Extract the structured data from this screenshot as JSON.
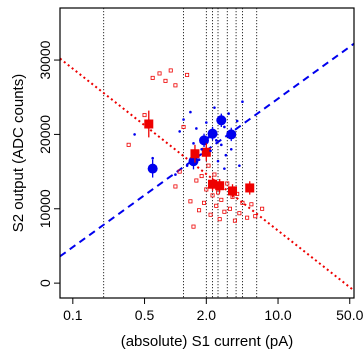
{
  "chart_data": {
    "type": "scatter",
    "xlabel": "(absolute) S1 current (pA)",
    "ylabel": "S2 output (ADC counts)",
    "x_scale": "log",
    "xlim": [
      0.075,
      55
    ],
    "ylim": [
      -2000,
      37000
    ],
    "x_tick_labels": [
      "0.1",
      "0.5",
      "2.0",
      "10.0",
      "50.0"
    ],
    "x_ticks": [
      0.1,
      0.5,
      2.0,
      10.0,
      50.0
    ],
    "y_tick_labels": [
      "0",
      "10000",
      "20000",
      "30000"
    ],
    "y_ticks": [
      0,
      10000,
      20000,
      30000
    ],
    "vertical_lines": [
      0.2,
      1.2,
      2.0,
      2.3,
      2.6,
      3.2,
      3.9,
      4.5,
      6.2
    ],
    "colors": {
      "blue": "#0000ee",
      "red": "#ee0000"
    },
    "series": [
      {
        "marker": "large circle",
        "color": "blue",
        "points": [
          {
            "x": 0.6,
            "y": 15400,
            "yerr": 1200
          },
          {
            "x": 1.5,
            "y": 16400,
            "yerr": 1100
          },
          {
            "x": 1.9,
            "y": 19200,
            "yerr": 900
          },
          {
            "x": 2.3,
            "y": 20100,
            "yerr": 900
          },
          {
            "x": 2.8,
            "y": 21900,
            "yerr": 900
          },
          {
            "x": 3.5,
            "y": 20000,
            "yerr": 900
          }
        ]
      },
      {
        "marker": "large square",
        "color": "red",
        "points": [
          {
            "x": 0.55,
            "y": 21400,
            "yerr": 1800
          },
          {
            "x": 1.55,
            "y": 17400,
            "yerr": 1200
          },
          {
            "x": 2.0,
            "y": 17600,
            "yerr": 1200
          },
          {
            "x": 2.3,
            "y": 13300,
            "yerr": 900
          },
          {
            "x": 2.7,
            "y": 13100,
            "yerr": 900
          },
          {
            "x": 3.6,
            "y": 12400,
            "yerr": 900
          },
          {
            "x": 5.3,
            "y": 12800,
            "yerr": 900
          }
        ]
      },
      {
        "marker": "small dot",
        "color": "blue",
        "points": [
          {
            "x": 0.4,
            "y": 20000
          },
          {
            "x": 0.6,
            "y": 16800
          },
          {
            "x": 1.0,
            "y": 14600
          },
          {
            "x": 1.1,
            "y": 20400
          },
          {
            "x": 1.2,
            "y": 22000
          },
          {
            "x": 1.3,
            "y": 15800
          },
          {
            "x": 1.5,
            "y": 18800
          },
          {
            "x": 1.6,
            "y": 20800
          },
          {
            "x": 1.7,
            "y": 16600
          },
          {
            "x": 1.8,
            "y": 18000
          },
          {
            "x": 2.0,
            "y": 21600
          },
          {
            "x": 2.1,
            "y": 19600
          },
          {
            "x": 2.2,
            "y": 17800
          },
          {
            "x": 2.4,
            "y": 23600
          },
          {
            "x": 2.5,
            "y": 19200
          },
          {
            "x": 2.6,
            "y": 16400
          },
          {
            "x": 2.8,
            "y": 18600
          },
          {
            "x": 3.0,
            "y": 21000
          },
          {
            "x": 3.1,
            "y": 17200
          },
          {
            "x": 3.3,
            "y": 22800
          },
          {
            "x": 3.5,
            "y": 18000
          },
          {
            "x": 3.7,
            "y": 19800
          },
          {
            "x": 4.0,
            "y": 21800
          },
          {
            "x": 4.2,
            "y": 15800
          },
          {
            "x": 4.5,
            "y": 24400
          },
          {
            "x": 1.4,
            "y": 23000
          },
          {
            "x": 2.3,
            "y": 20600
          },
          {
            "x": 3.0,
            "y": 15400
          }
        ]
      },
      {
        "marker": "small square",
        "color": "red",
        "points": [
          {
            "x": 0.35,
            "y": 18600
          },
          {
            "x": 0.6,
            "y": 27600
          },
          {
            "x": 0.7,
            "y": 28200
          },
          {
            "x": 0.8,
            "y": 27200
          },
          {
            "x": 0.9,
            "y": 28600
          },
          {
            "x": 1.0,
            "y": 26600
          },
          {
            "x": 1.0,
            "y": 13000
          },
          {
            "x": 1.1,
            "y": 15000
          },
          {
            "x": 1.2,
            "y": 21000
          },
          {
            "x": 1.3,
            "y": 28000
          },
          {
            "x": 1.4,
            "y": 11000
          },
          {
            "x": 1.5,
            "y": 7600
          },
          {
            "x": 1.6,
            "y": 13800
          },
          {
            "x": 1.7,
            "y": 9800
          },
          {
            "x": 1.8,
            "y": 14400
          },
          {
            "x": 1.9,
            "y": 10800
          },
          {
            "x": 2.0,
            "y": 12600
          },
          {
            "x": 2.1,
            "y": 15800
          },
          {
            "x": 2.2,
            "y": 9200
          },
          {
            "x": 2.3,
            "y": 11800
          },
          {
            "x": 2.4,
            "y": 14600
          },
          {
            "x": 2.5,
            "y": 10400
          },
          {
            "x": 2.6,
            "y": 12200
          },
          {
            "x": 2.7,
            "y": 8600
          },
          {
            "x": 2.8,
            "y": 11200
          },
          {
            "x": 3.0,
            "y": 9600
          },
          {
            "x": 3.2,
            "y": 13400
          },
          {
            "x": 3.4,
            "y": 10000
          },
          {
            "x": 3.6,
            "y": 11600
          },
          {
            "x": 3.8,
            "y": 8400
          },
          {
            "x": 4.0,
            "y": 12000
          },
          {
            "x": 4.2,
            "y": 9400
          },
          {
            "x": 4.5,
            "y": 10800
          },
          {
            "x": 5.0,
            "y": 8800
          },
          {
            "x": 5.5,
            "y": 10600
          },
          {
            "x": 6.0,
            "y": 9000
          },
          {
            "x": 7.0,
            "y": 10000
          },
          {
            "x": 0.5,
            "y": 22600
          }
        ]
      }
    ],
    "fit_lines": [
      {
        "color": "blue",
        "style": "dashed",
        "from": [
          0.075,
          3600
        ],
        "to": [
          55,
          32200
        ]
      },
      {
        "color": "red",
        "style": "dotted",
        "from": [
          0.075,
          30200
        ],
        "to": [
          55,
          -1000
        ]
      }
    ]
  }
}
